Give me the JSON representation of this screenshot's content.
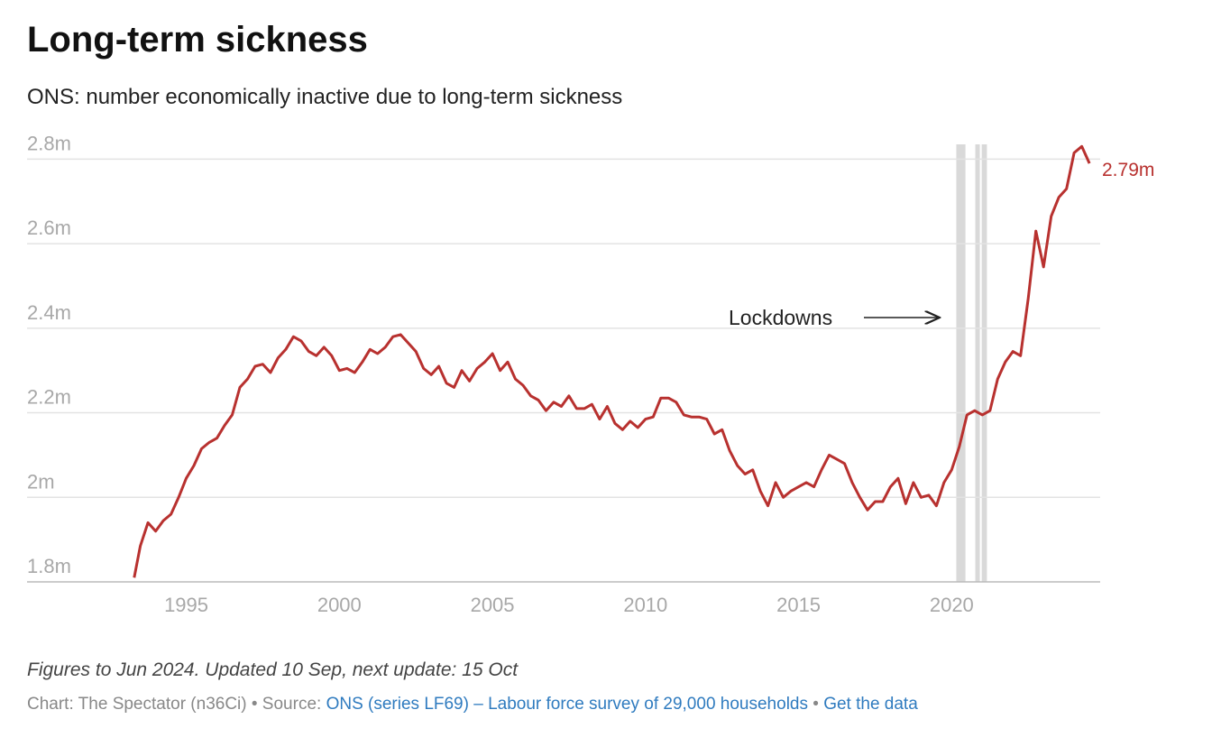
{
  "chart_data": {
    "type": "line",
    "title": "Long-term sickness",
    "subtitle": "ONS: number economically inactive due to long-term sickness",
    "x": [
      1993.3,
      1993.5,
      1993.75,
      1994.0,
      1994.25,
      1994.5,
      1994.75,
      1995.0,
      1995.25,
      1995.5,
      1995.75,
      1996.0,
      1996.25,
      1996.5,
      1996.75,
      1997.0,
      1997.25,
      1997.5,
      1997.75,
      1998.0,
      1998.25,
      1998.5,
      1998.75,
      1999.0,
      1999.25,
      1999.5,
      1999.75,
      2000.0,
      2000.25,
      2000.5,
      2000.75,
      2001.0,
      2001.25,
      2001.5,
      2001.75,
      2002.0,
      2002.25,
      2002.5,
      2002.75,
      2003.0,
      2003.25,
      2003.5,
      2003.75,
      2004.0,
      2004.25,
      2004.5,
      2004.75,
      2005.0,
      2005.25,
      2005.5,
      2005.75,
      2006.0,
      2006.25,
      2006.5,
      2006.75,
      2007.0,
      2007.25,
      2007.5,
      2007.75,
      2008.0,
      2008.25,
      2008.5,
      2008.75,
      2009.0,
      2009.25,
      2009.5,
      2009.75,
      2010.0,
      2010.25,
      2010.5,
      2010.75,
      2011.0,
      2011.25,
      2011.5,
      2011.75,
      2012.0,
      2012.25,
      2012.5,
      2012.75,
      2013.0,
      2013.25,
      2013.5,
      2013.75,
      2014.0,
      2014.25,
      2014.5,
      2014.75,
      2015.0,
      2015.25,
      2015.5,
      2015.75,
      2016.0,
      2016.25,
      2016.5,
      2016.75,
      2017.0,
      2017.25,
      2017.5,
      2017.75,
      2018.0,
      2018.25,
      2018.5,
      2018.75,
      2019.0,
      2019.25,
      2019.5,
      2019.75,
      2020.0,
      2020.25,
      2020.5,
      2020.75,
      2021.0,
      2021.25,
      2021.5,
      2021.75,
      2022.0,
      2022.25,
      2022.5,
      2022.75,
      2023.0,
      2023.25,
      2023.5,
      2023.75,
      2024.0,
      2024.25,
      2024.5
    ],
    "values": [
      1.81,
      1.885,
      1.94,
      1.92,
      1.945,
      1.96,
      2.0,
      2.045,
      2.075,
      2.115,
      2.13,
      2.14,
      2.17,
      2.195,
      2.26,
      2.28,
      2.31,
      2.315,
      2.295,
      2.33,
      2.35,
      2.38,
      2.37,
      2.345,
      2.335,
      2.355,
      2.335,
      2.3,
      2.305,
      2.295,
      2.32,
      2.35,
      2.34,
      2.355,
      2.38,
      2.385,
      2.365,
      2.345,
      2.305,
      2.29,
      2.31,
      2.27,
      2.26,
      2.3,
      2.275,
      2.305,
      2.32,
      2.34,
      2.3,
      2.32,
      2.28,
      2.265,
      2.24,
      2.23,
      2.205,
      2.225,
      2.215,
      2.24,
      2.21,
      2.21,
      2.22,
      2.185,
      2.215,
      2.175,
      2.16,
      2.18,
      2.165,
      2.185,
      2.19,
      2.235,
      2.235,
      2.225,
      2.195,
      2.19,
      2.19,
      2.185,
      2.15,
      2.16,
      2.11,
      2.075,
      2.055,
      2.065,
      2.015,
      1.98,
      2.035,
      2.0,
      2.015,
      2.025,
      2.035,
      2.025,
      2.065,
      2.1,
      2.09,
      2.08,
      2.035,
      2.0,
      1.97,
      1.99,
      1.99,
      2.025,
      2.045,
      1.985,
      2.035,
      2.0,
      2.005,
      1.98,
      2.035,
      2.065,
      2.12,
      2.195,
      2.205,
      2.195,
      2.205,
      2.28,
      2.32,
      2.345,
      2.335,
      2.47,
      2.63,
      2.545,
      2.665,
      2.71,
      2.73,
      2.815,
      2.83,
      2.79
    ],
    "color": "#b8312f",
    "end_label": "2.79m",
    "xlim": [
      1989.8,
      2024.85
    ],
    "ylim": [
      1.8,
      2.835
    ],
    "xticks": [
      1995,
      2000,
      2005,
      2010,
      2015,
      2020
    ],
    "yticks": [
      {
        "value": 1.8,
        "label": "1.8m"
      },
      {
        "value": 2,
        "label": "2m"
      },
      {
        "value": 2.2,
        "label": "2.2m"
      },
      {
        "value": 2.4,
        "label": "2.4m"
      },
      {
        "value": 2.6,
        "label": "2.6m"
      },
      {
        "value": 2.8,
        "label": "2.8m"
      }
    ],
    "grid": true,
    "shaded_ranges": [
      [
        2020.15,
        2020.45
      ],
      [
        2020.77,
        2020.92
      ],
      [
        2020.98,
        2021.15
      ]
    ],
    "shade_color": "#d9d9d9",
    "annotation": "Lockdowns",
    "note": "Figures to Jun 2024. Updated 10 Sep, next update: 15 Oct",
    "credit": "Chart: The Spectator (n36Ci) • Source:",
    "source_link": "ONS (series LF69) – Labour force survey of 29,000 households",
    "separator": "•",
    "data_link": "Get the data"
  }
}
